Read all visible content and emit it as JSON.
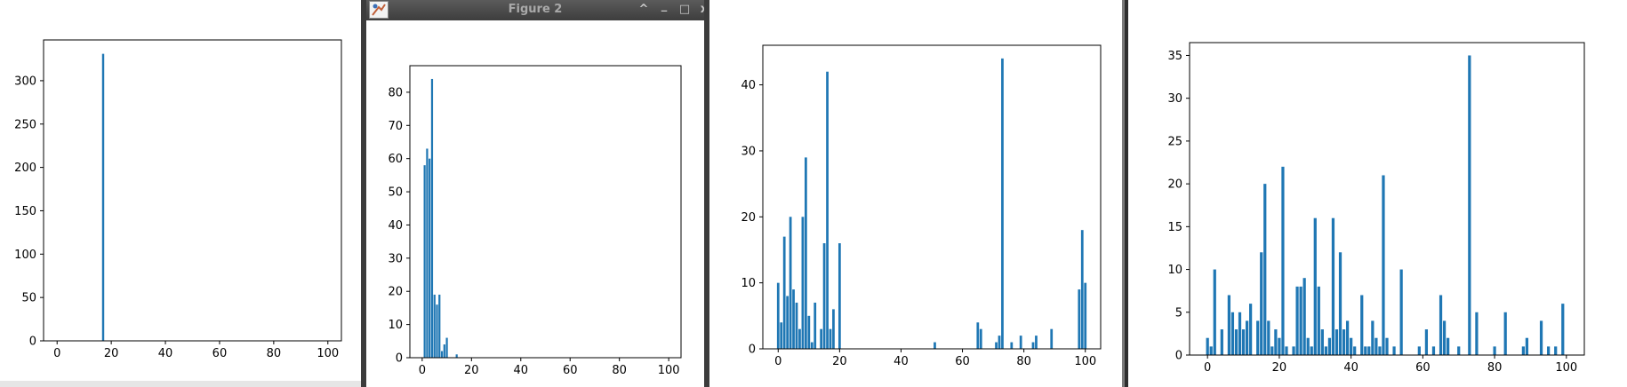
{
  "window2": {
    "title": "Figure 2",
    "icon": "figure-app-icon",
    "buttons": [
      {
        "name": "maximize-arrow-button",
        "label": "^"
      },
      {
        "name": "minimize-button",
        "label": "_"
      },
      {
        "name": "restore-button",
        "label": "□"
      },
      {
        "name": "close-button",
        "label": "x"
      }
    ]
  },
  "colors": {
    "bar": "#1f77b4",
    "axes": "#000000",
    "background": "#ffffff"
  },
  "chart_data": [
    {
      "type": "bar",
      "title": "",
      "xlabel": "",
      "ylabel": "",
      "xlim": [
        -5,
        105
      ],
      "ylim": [
        0,
        347
      ],
      "xticks": [
        0,
        20,
        40,
        60,
        80,
        100
      ],
      "yticks": [
        0,
        50,
        100,
        150,
        200,
        250,
        300
      ],
      "bar_width": 0.8,
      "grid": false,
      "x": [
        17
      ],
      "values": [
        331
      ]
    },
    {
      "type": "bar",
      "title": "",
      "xlabel": "",
      "ylabel": "",
      "xlim": [
        -5,
        105
      ],
      "ylim": [
        0,
        88
      ],
      "xticks": [
        0,
        20,
        40,
        60,
        80,
        100
      ],
      "yticks": [
        0,
        10,
        20,
        30,
        40,
        50,
        60,
        70,
        80
      ],
      "bar_width": 0.8,
      "grid": false,
      "x": [
        1,
        2,
        3,
        4,
        5,
        6,
        7,
        8,
        9,
        10,
        14
      ],
      "values": [
        58,
        63,
        60,
        84,
        19,
        16,
        19,
        2,
        4,
        6,
        1
      ]
    },
    {
      "type": "bar",
      "title": "",
      "xlabel": "",
      "ylabel": "",
      "xlim": [
        -5,
        105
      ],
      "ylim": [
        0,
        46
      ],
      "xticks": [
        0,
        20,
        40,
        60,
        80,
        100
      ],
      "yticks": [
        0,
        10,
        20,
        30,
        40
      ],
      "bar_width": 0.8,
      "grid": false,
      "x": [
        0,
        1,
        2,
        3,
        4,
        5,
        6,
        7,
        8,
        9,
        10,
        11,
        12,
        14,
        15,
        16,
        17,
        18,
        20,
        51,
        65,
        66,
        71,
        72,
        73,
        76,
        79,
        83,
        84,
        89,
        98,
        99,
        100
      ],
      "values": [
        10,
        4,
        17,
        8,
        20,
        9,
        7,
        3,
        20,
        29,
        5,
        1,
        7,
        3,
        16,
        42,
        3,
        6,
        16,
        1,
        4,
        3,
        1,
        2,
        44,
        1,
        2,
        1,
        2,
        3,
        9,
        18,
        10
      ]
    },
    {
      "type": "bar",
      "title": "",
      "xlabel": "",
      "ylabel": "",
      "xlim": [
        -5,
        105
      ],
      "ylim": [
        0,
        36.5
      ],
      "xticks": [
        0,
        20,
        40,
        60,
        80,
        100
      ],
      "yticks": [
        0,
        5,
        10,
        15,
        20,
        25,
        30,
        35
      ],
      "bar_width": 0.8,
      "grid": false,
      "x": [
        0,
        1,
        2,
        4,
        6,
        7,
        8,
        9,
        10,
        11,
        12,
        14,
        15,
        16,
        17,
        18,
        19,
        20,
        21,
        22,
        24,
        25,
        26,
        27,
        28,
        29,
        30,
        31,
        32,
        33,
        34,
        35,
        36,
        37,
        38,
        39,
        40,
        41,
        43,
        44,
        45,
        46,
        47,
        48,
        49,
        50,
        52,
        54,
        59,
        61,
        63,
        65,
        66,
        67,
        70,
        73,
        75,
        80,
        83,
        88,
        89,
        93,
        95,
        97,
        99
      ],
      "values": [
        2,
        1,
        10,
        3,
        7,
        5,
        3,
        5,
        3,
        4,
        6,
        4,
        12,
        20,
        4,
        1,
        3,
        2,
        22,
        1,
        1,
        8,
        8,
        9,
        2,
        1,
        16,
        8,
        3,
        1,
        2,
        16,
        3,
        12,
        3,
        4,
        2,
        1,
        7,
        1,
        1,
        4,
        2,
        1,
        21,
        2,
        1,
        10,
        1,
        3,
        1,
        7,
        4,
        2,
        1,
        35,
        5,
        1,
        5,
        1,
        2,
        4,
        1,
        1,
        6
      ]
    }
  ]
}
